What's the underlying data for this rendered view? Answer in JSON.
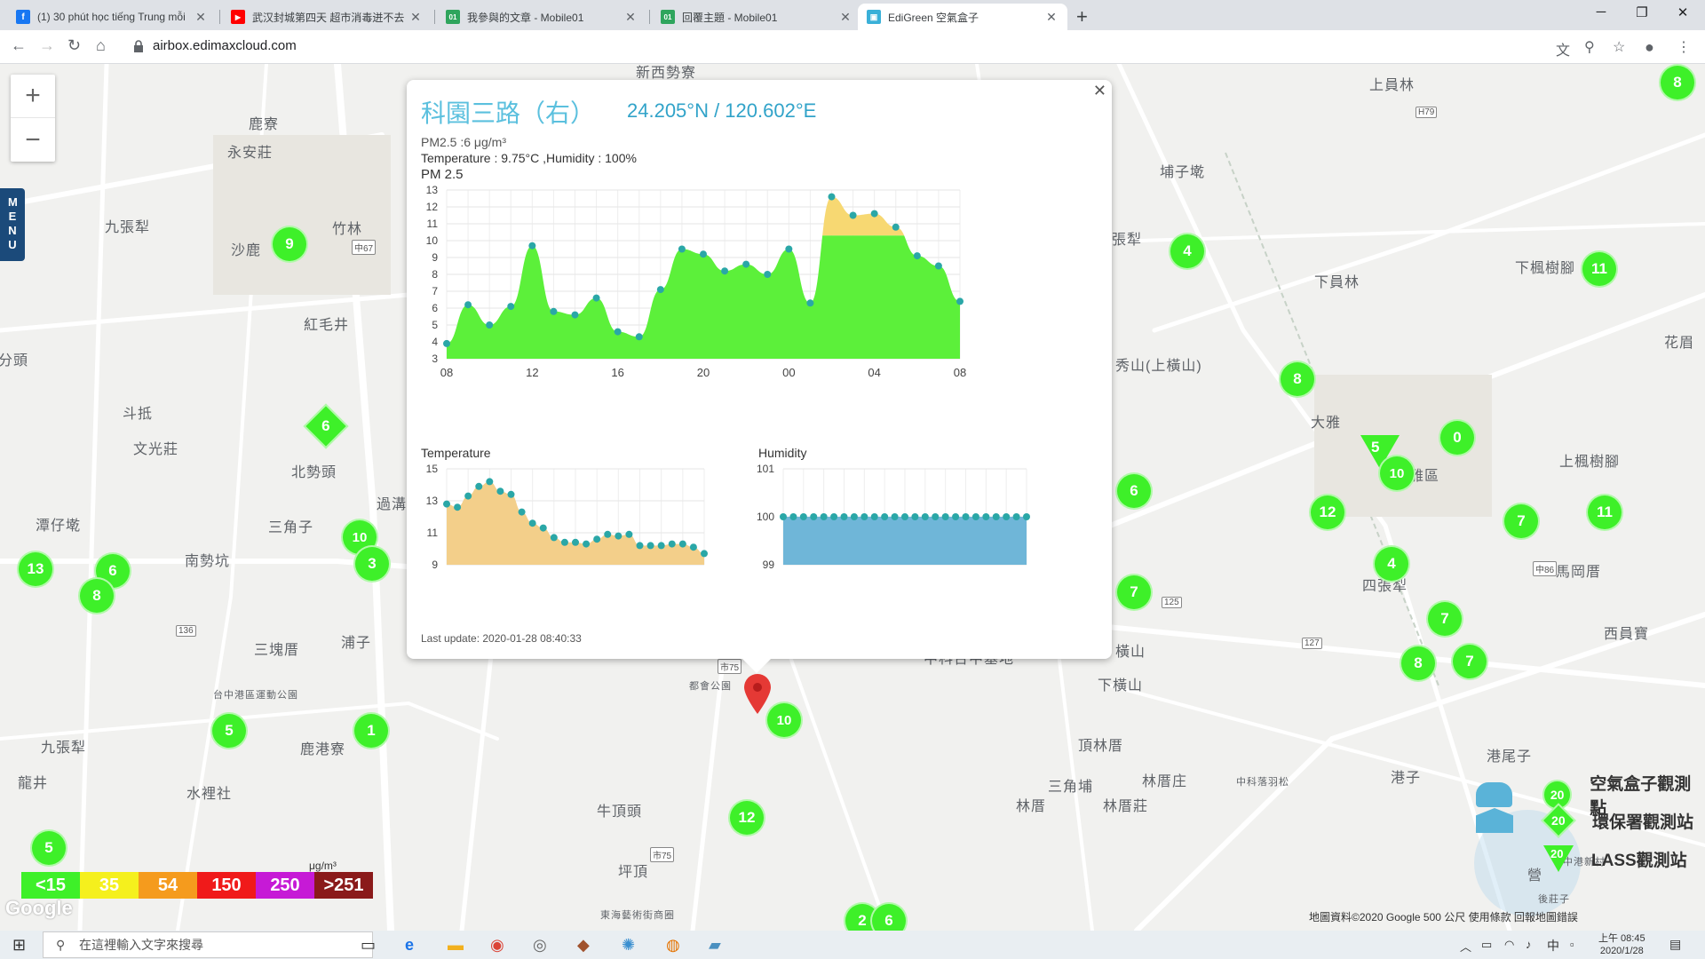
{
  "tabs": [
    {
      "title": "(1) 30 phút học tiếng Trung mỗi",
      "icon": "facebook-icon",
      "color": "#1877f2",
      "glyph": "f"
    },
    {
      "title": "武汉封城第四天 超市消毒迸不去",
      "icon": "youtube-icon",
      "color": "#ff0000",
      "glyph": "▶"
    },
    {
      "title": "我參與的文章 - Mobile01",
      "icon": "mobile01-icon",
      "color": "#2fa55d",
      "glyph": "01"
    },
    {
      "title": "回覆主題 - Mobile01",
      "icon": "mobile01-icon",
      "color": "#2fa55d",
      "glyph": "01"
    },
    {
      "title": "EdiGreen 空氣盒子",
      "icon": "edigreen-icon",
      "color": "#3ab0d8",
      "glyph": "▣"
    }
  ],
  "url": "airbox.edimaxcloud.com",
  "map": {
    "zoom_in": "+",
    "zoom_out": "−",
    "menu": "MENU",
    "labels": [
      {
        "t": "新西勢寮"
      },
      {
        "t": "鹿寮"
      },
      {
        "t": "永安莊"
      },
      {
        "t": "九張犁"
      },
      {
        "t": "沙鹿"
      },
      {
        "t": "竹林"
      },
      {
        "t": "紅毛井"
      },
      {
        "t": "斗抵"
      },
      {
        "t": "文光莊"
      },
      {
        "t": "北勢頭"
      },
      {
        "t": "潭仔墘"
      },
      {
        "t": "南勢坑"
      },
      {
        "t": "三角子"
      },
      {
        "t": "三塊厝"
      },
      {
        "t": "浦子"
      },
      {
        "t": "九張犁"
      },
      {
        "t": "鹿港寮"
      },
      {
        "t": "水裡社"
      },
      {
        "t": "牛頂頭"
      },
      {
        "t": "坪頂"
      },
      {
        "t": "都會公園"
      },
      {
        "t": "頂林厝"
      },
      {
        "t": "三角埔"
      },
      {
        "t": "林厝庄"
      },
      {
        "t": "林厝"
      },
      {
        "t": "林厝莊"
      },
      {
        "t": "下橫山"
      },
      {
        "t": "橫山"
      },
      {
        "t": "秀山(上橫山)"
      },
      {
        "t": "埔子墘"
      },
      {
        "t": "張犁"
      },
      {
        "t": "上員林"
      },
      {
        "t": "下員林"
      },
      {
        "t": "下楓樹腳"
      },
      {
        "t": "上楓樹腳"
      },
      {
        "t": "花眉"
      },
      {
        "t": "大雅"
      },
      {
        "t": "大雅區"
      },
      {
        "t": "四張犁"
      },
      {
        "t": "馬岡厝"
      },
      {
        "t": "西員寶"
      },
      {
        "t": "港尾子"
      },
      {
        "t": "港子"
      },
      {
        "t": "中港新村"
      },
      {
        "t": "後莊子"
      },
      {
        "t": "分頭"
      },
      {
        "t": "龍井"
      },
      {
        "t": "東海藝術街商圈"
      },
      {
        "t": "台中港區運動公園"
      },
      {
        "t": "中科台中基地"
      },
      {
        "t": "中科落羽松"
      },
      {
        "t": "過溝"
      },
      {
        "t": "營"
      }
    ],
    "markers": [
      {
        "v": "9",
        "s": "c"
      },
      {
        "v": "6",
        "s": "d"
      },
      {
        "v": "10",
        "s": "c"
      },
      {
        "v": "3",
        "s": "c"
      },
      {
        "v": "13",
        "s": "c"
      },
      {
        "v": "6",
        "s": "c"
      },
      {
        "v": "8",
        "s": "c"
      },
      {
        "v": "5",
        "s": "c"
      },
      {
        "v": "1",
        "s": "c"
      },
      {
        "v": "5",
        "s": "c"
      },
      {
        "v": "12",
        "s": "c"
      },
      {
        "v": "6",
        "s": "c"
      },
      {
        "v": "10",
        "s": "c"
      },
      {
        "v": "4",
        "s": "c"
      },
      {
        "v": "6",
        "s": "c"
      },
      {
        "v": "7",
        "s": "c"
      },
      {
        "v": "8",
        "s": "c"
      },
      {
        "v": "0",
        "s": "c"
      },
      {
        "v": "5",
        "s": "t"
      },
      {
        "v": "10",
        "s": "c"
      },
      {
        "v": "12",
        "s": "c"
      },
      {
        "v": "4",
        "s": "c"
      },
      {
        "v": "7",
        "s": "c"
      },
      {
        "v": "7",
        "s": "c"
      },
      {
        "v": "8",
        "s": "c"
      },
      {
        "v": "7",
        "s": "c"
      },
      {
        "v": "11",
        "s": "c"
      },
      {
        "v": "11",
        "s": "c"
      },
      {
        "v": "8",
        "s": "c"
      },
      {
        "v": "2",
        "s": "c"
      },
      {
        "v": "6",
        "s": "c"
      }
    ],
    "attribution": "地圖資料©2020 Google   500 公尺   使用條款   回報地圖錯誤",
    "google": "Google"
  },
  "popup": {
    "title": "科園三路（右）",
    "coords": "24.205°N / 120.602°E",
    "pm_line": "PM2.5 :6 μg/m³",
    "env_line": "Temperature : 9.75°C ,Humidity : 100%",
    "chart_title": "PM 2.5",
    "temp_title": "Temperature",
    "hum_title": "Humidity",
    "last_update": "Last update: 2020-01-28 08:40:33"
  },
  "chart_data": [
    {
      "type": "area",
      "title": "PM 2.5",
      "x_ticks": [
        "08",
        "12",
        "16",
        "20",
        "00",
        "04",
        "08"
      ],
      "ylim": [
        3,
        13
      ],
      "y_ticks": [
        3,
        4,
        5,
        6,
        7,
        8,
        9,
        10,
        11,
        12,
        13
      ],
      "threshold": 10.3,
      "values": [
        3.9,
        6.2,
        5,
        6.1,
        9.7,
        5.8,
        5.6,
        6.6,
        4.6,
        4.3,
        7.1,
        9.5,
        9.2,
        8.2,
        8.6,
        8,
        9.5,
        6.3,
        12.6,
        11.5,
        11.6,
        10.8,
        9.1,
        8.5,
        6.4
      ],
      "colors": {
        "low": "#5cf03a",
        "high": "#f7d872",
        "dots": "#2aa7a7"
      }
    },
    {
      "type": "area",
      "title": "Temperature",
      "ylim": [
        9,
        15
      ],
      "y_ticks": [
        9,
        11,
        13,
        15
      ],
      "values": [
        12.8,
        12.6,
        13.3,
        13.9,
        14.2,
        13.6,
        13.4,
        12.3,
        11.6,
        11.3,
        10.7,
        10.4,
        10.4,
        10.3,
        10.6,
        10.9,
        10.8,
        10.9,
        10.2,
        10.2,
        10.2,
        10.3,
        10.3,
        10.1,
        9.7
      ],
      "colors": {
        "fill": "#f3cf8a",
        "dots": "#2aa7a7"
      }
    },
    {
      "type": "area",
      "title": "Humidity",
      "ylim": [
        99,
        101
      ],
      "y_ticks": [
        99,
        100,
        101
      ],
      "values": [
        100,
        100,
        100,
        100,
        100,
        100,
        100,
        100,
        100,
        100,
        100,
        100,
        100,
        100,
        100,
        100,
        100,
        100,
        100,
        100,
        100,
        100,
        100,
        100,
        100
      ],
      "colors": {
        "fill": "#6fb6d8",
        "dots": "#2aa7a7"
      }
    }
  ],
  "scale": [
    {
      "label": "<15",
      "color": "#3ef029"
    },
    {
      "label": "35",
      "color": "#f5f01d"
    },
    {
      "label": "54",
      "color": "#f59b1d"
    },
    {
      "label": "150",
      "color": "#f01a1a"
    },
    {
      "label": "250",
      "color": "#c61ad6"
    },
    {
      "label": ">251",
      "color": "#8a1a1a"
    }
  ],
  "scale_unit": "μg/m³",
  "legend": [
    {
      "label": "空氣盒子觀測點",
      "v": "20"
    },
    {
      "label": "環保署觀測站",
      "v": "20"
    },
    {
      "label": "LASS觀測站",
      "v": "20"
    }
  ],
  "taskbar": {
    "search": "在這裡輸入文字來搜尋",
    "time": "上午 08:45",
    "date": "2020/1/28",
    "ime": "中"
  }
}
